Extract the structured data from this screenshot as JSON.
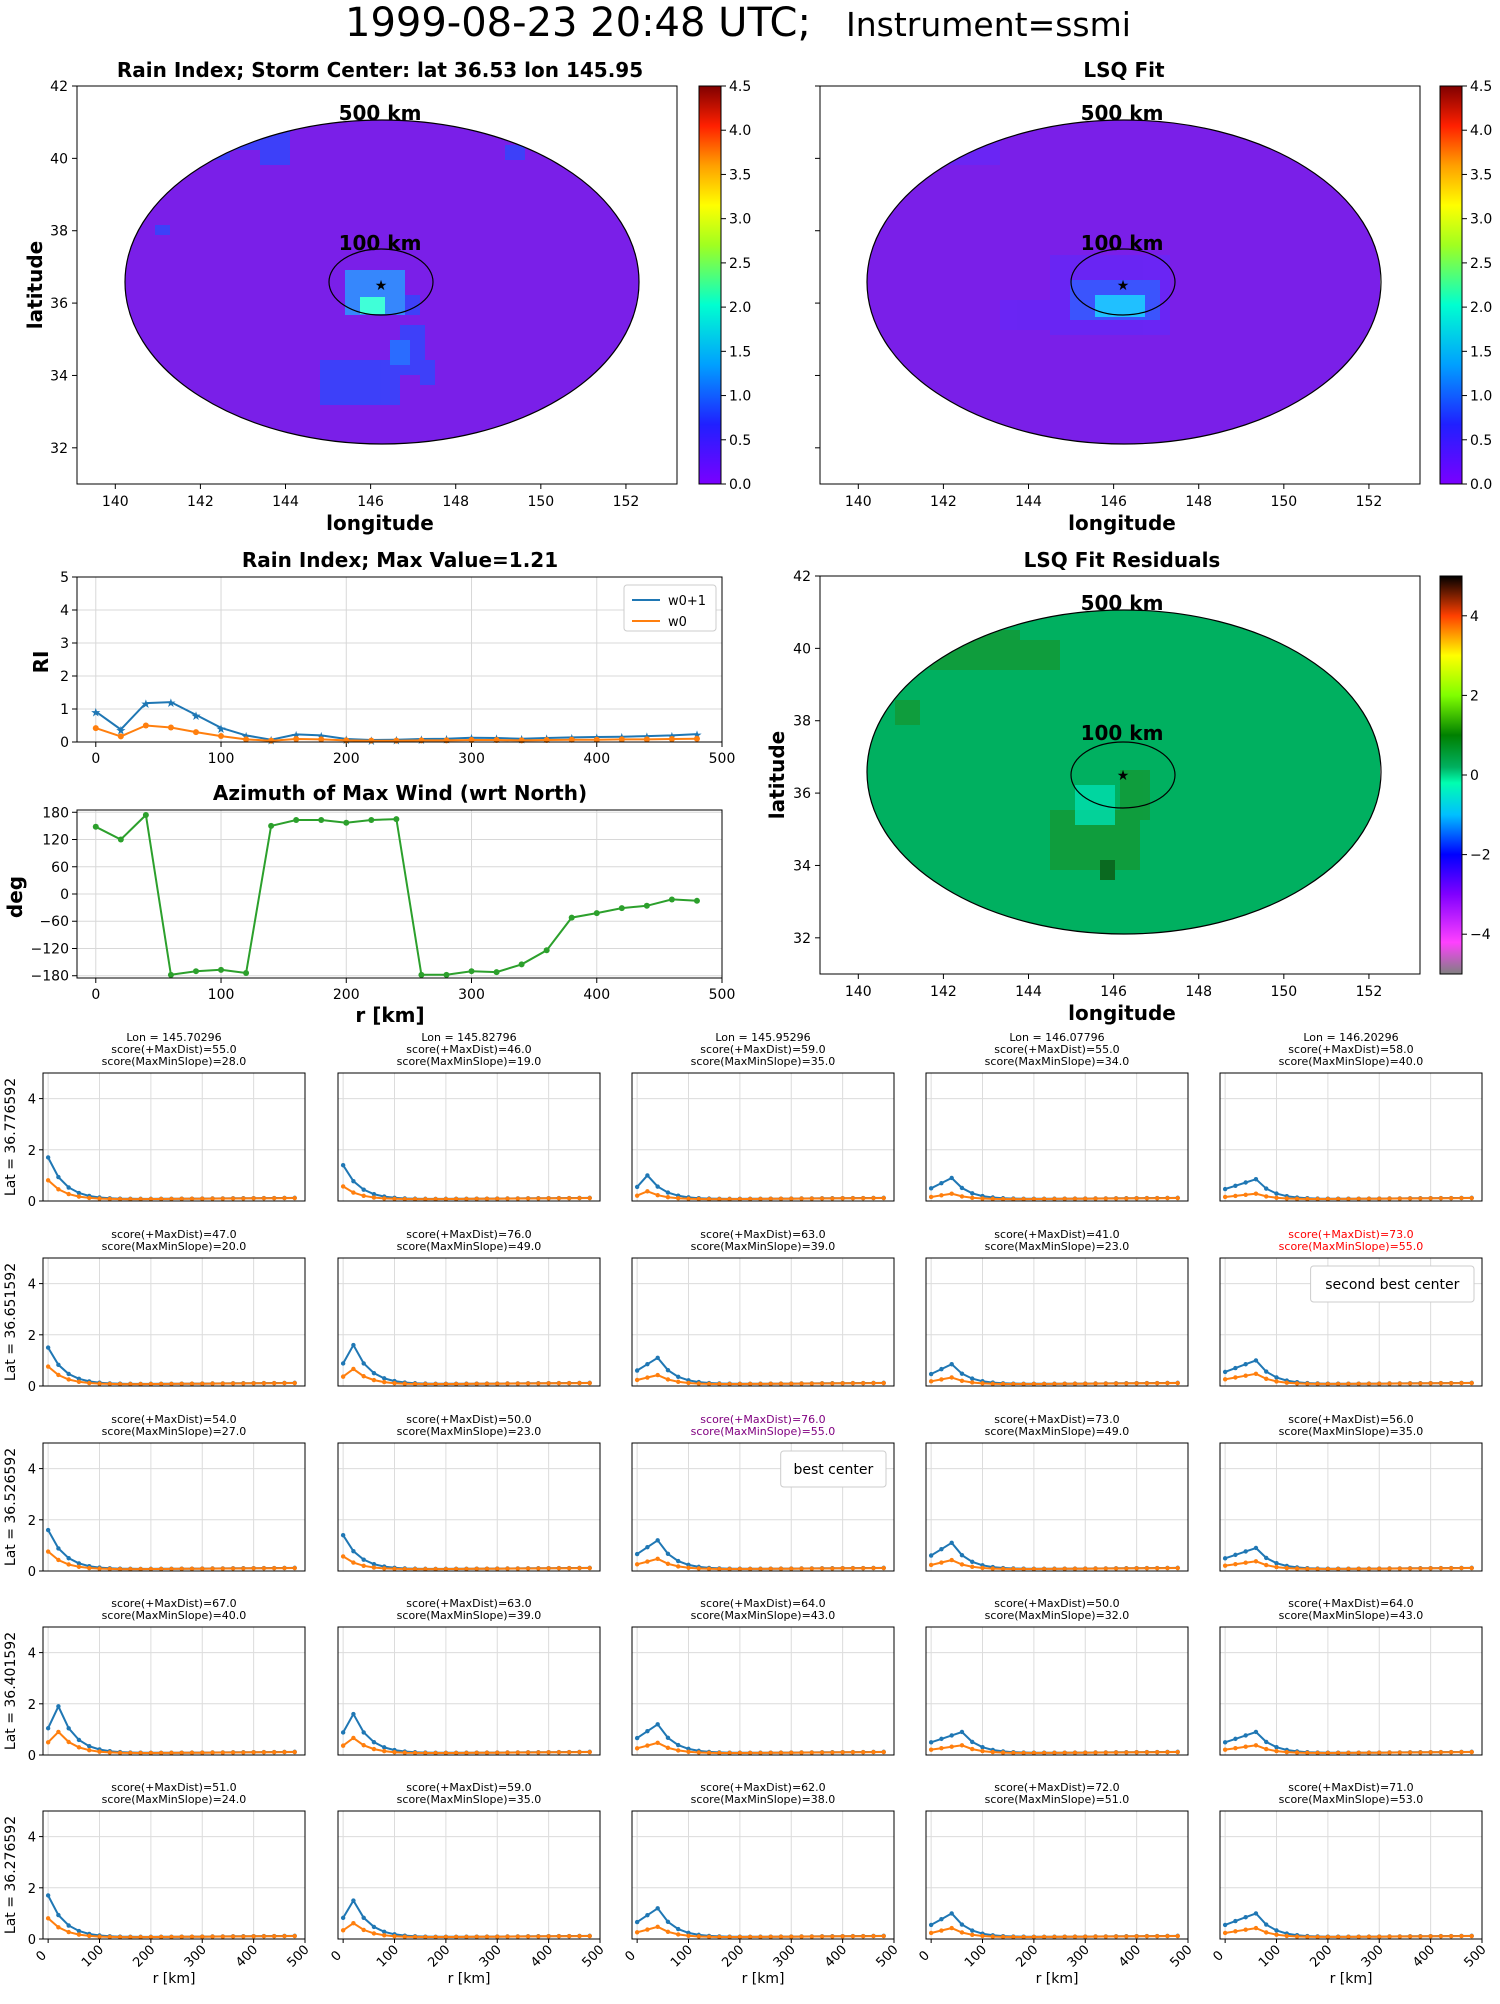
{
  "suptitle": {
    "date": "1999-08-23 20:48 UTC;",
    "instrument": "Instrument=ssmi"
  },
  "colors": {
    "w0p1": "#1f77b4",
    "w0": "#ff7f0e",
    "azimuth": "#2ca02c",
    "field": "#7a1fe8",
    "residual": "#00b060"
  },
  "maps": {
    "rain_index": {
      "title": "Rain Index; Storm Center: lat 36.53 lon 145.95",
      "xlabel": "longitude",
      "ylabel": "latitude"
    },
    "lsq_fit": {
      "title": "LSQ Fit",
      "xlabel": "longitude"
    },
    "residuals": {
      "title": "LSQ Fit Residuals",
      "xlabel": "longitude",
      "ylabel": "latitude"
    },
    "circle_500": "500 km",
    "circle_100": "100 km",
    "x_ticks": [
      "140",
      "142",
      "144",
      "146",
      "148",
      "150",
      "152"
    ],
    "y_ticks_top": [
      "32",
      "34",
      "36",
      "38",
      "40",
      "42"
    ],
    "y_ticks_res": [
      "32",
      "34",
      "36",
      "38",
      "40",
      "42"
    ],
    "cbar_ticks": [
      "0.0",
      "0.5",
      "1.0",
      "1.5",
      "2.0",
      "2.5",
      "3.0",
      "3.5",
      "4.0",
      "4.5"
    ],
    "cbar_ticks_res": [
      "−4",
      "−2",
      "0",
      "2",
      "4"
    ]
  },
  "chart_data": [
    {
      "type": "line",
      "title": "Rain Index; Max Value=1.21",
      "ylabel": "RI",
      "xlim": [
        -15,
        500
      ],
      "ylim": [
        0,
        5
      ],
      "x_ticks": [
        "0",
        "100",
        "200",
        "300",
        "400",
        "500"
      ],
      "y_ticks": [
        "0",
        "1",
        "2",
        "3",
        "4",
        "5"
      ],
      "x": [
        0,
        20,
        40,
        60,
        80,
        100,
        120,
        140,
        160,
        180,
        200,
        220,
        240,
        260,
        280,
        300,
        320,
        340,
        360,
        380,
        400,
        420,
        440,
        460,
        480
      ],
      "series": [
        {
          "name": "w0+1",
          "values": [
            0.92,
            0.38,
            1.18,
            1.21,
            0.82,
            0.43,
            0.2,
            0.07,
            0.23,
            0.2,
            0.09,
            0.06,
            0.07,
            0.09,
            0.1,
            0.13,
            0.12,
            0.1,
            0.12,
            0.14,
            0.15,
            0.16,
            0.18,
            0.2,
            0.24
          ]
        },
        {
          "name": "w0",
          "values": [
            0.42,
            0.17,
            0.5,
            0.44,
            0.3,
            0.18,
            0.08,
            0.04,
            0.09,
            0.08,
            0.05,
            0.04,
            0.04,
            0.05,
            0.05,
            0.06,
            0.06,
            0.05,
            0.06,
            0.07,
            0.07,
            0.08,
            0.08,
            0.09,
            0.1
          ]
        }
      ],
      "legend": "top-right"
    },
    {
      "type": "line",
      "title": "Azimuth of Max Wind (wrt North)",
      "xlabel": "r [km]",
      "ylabel": "deg",
      "xlim": [
        -15,
        500
      ],
      "ylim": [
        -185,
        185
      ],
      "x_ticks": [
        "0",
        "100",
        "200",
        "300",
        "400",
        "500"
      ],
      "y_ticks": [
        "−180",
        "−120",
        "−60",
        "0",
        "60",
        "120",
        "180"
      ],
      "x": [
        0,
        20,
        40,
        60,
        80,
        100,
        120,
        140,
        160,
        180,
        200,
        220,
        240,
        260,
        280,
        300,
        320,
        340,
        360,
        380,
        400,
        420,
        440,
        460,
        480
      ],
      "values": [
        148,
        120,
        174,
        -178,
        -170,
        -167,
        -174,
        150,
        163,
        163,
        157,
        163,
        165,
        -178,
        -178,
        -170,
        -172,
        -155,
        -124,
        -52,
        -42,
        -31,
        -26,
        -12,
        -15
      ]
    }
  ],
  "grid": {
    "x_ticks": [
      "0",
      "100",
      "200",
      "300",
      "400",
      "500"
    ],
    "y_ticks": [
      "0",
      "2",
      "4"
    ],
    "xlabel": "r [km]",
    "col_headers": [
      "Lon = 145.70296",
      "Lon = 145.82796",
      "Lon = 145.95296",
      "Lon = 146.07796",
      "Lon = 146.20296"
    ],
    "row_labels": [
      "Lat = 36.776592",
      "Lat = 36.651592",
      "Lat = 36.526592",
      "Lat = 36.401592",
      "Lat = 36.276592"
    ],
    "scores": [
      [
        [
          "score(+MaxDist)=55.0",
          "score(MaxMinSlope)=28.0"
        ],
        [
          "score(+MaxDist)=46.0",
          "score(MaxMinSlope)=19.0"
        ],
        [
          "score(+MaxDist)=59.0",
          "score(MaxMinSlope)=35.0"
        ],
        [
          "score(+MaxDist)=55.0",
          "score(MaxMinSlope)=34.0"
        ],
        [
          "score(+MaxDist)=58.0",
          "score(MaxMinSlope)=40.0"
        ]
      ],
      [
        [
          "score(+MaxDist)=47.0",
          "score(MaxMinSlope)=20.0"
        ],
        [
          "score(+MaxDist)=76.0",
          "score(MaxMinSlope)=49.0"
        ],
        [
          "score(+MaxDist)=63.0",
          "score(MaxMinSlope)=39.0"
        ],
        [
          "score(+MaxDist)=41.0",
          "score(MaxMinSlope)=23.0"
        ],
        [
          "score(+MaxDist)=73.0",
          "score(MaxMinSlope)=55.0"
        ]
      ],
      [
        [
          "score(+MaxDist)=54.0",
          "score(MaxMinSlope)=27.0"
        ],
        [
          "score(+MaxDist)=50.0",
          "score(MaxMinSlope)=23.0"
        ],
        [
          "score(+MaxDist)=76.0",
          "score(MaxMinSlope)=55.0"
        ],
        [
          "score(+MaxDist)=73.0",
          "score(MaxMinSlope)=49.0"
        ],
        [
          "score(+MaxDist)=56.0",
          "score(MaxMinSlope)=35.0"
        ]
      ],
      [
        [
          "score(+MaxDist)=67.0",
          "score(MaxMinSlope)=40.0"
        ],
        [
          "score(+MaxDist)=63.0",
          "score(MaxMinSlope)=39.0"
        ],
        [
          "score(+MaxDist)=64.0",
          "score(MaxMinSlope)=43.0"
        ],
        [
          "score(+MaxDist)=50.0",
          "score(MaxMinSlope)=32.0"
        ],
        [
          "score(+MaxDist)=64.0",
          "score(MaxMinSlope)=43.0"
        ]
      ],
      [
        [
          "score(+MaxDist)=51.0",
          "score(MaxMinSlope)=24.0"
        ],
        [
          "score(+MaxDist)=59.0",
          "score(MaxMinSlope)=35.0"
        ],
        [
          "score(+MaxDist)=62.0",
          "score(MaxMinSlope)=38.0"
        ],
        [
          "score(+MaxDist)=72.0",
          "score(MaxMinSlope)=51.0"
        ],
        [
          "score(+MaxDist)=71.0",
          "score(MaxMinSlope)=53.0"
        ]
      ]
    ],
    "highlights": [
      {
        "row": 1,
        "col": 4,
        "color": "#ff0000",
        "label": "second best center"
      },
      {
        "row": 2,
        "col": 2,
        "color": "#800080",
        "label": "best center"
      }
    ],
    "peaks": [
      [
        [
          1.7,
          0.85
        ],
        [
          1.4,
          0.6
        ],
        [
          1.0,
          0.4
        ],
        [
          0.9,
          0.3
        ],
        [
          0.85,
          0.3
        ]
      ],
      [
        [
          1.5,
          0.8
        ],
        [
          1.6,
          0.7
        ],
        [
          1.1,
          0.45
        ],
        [
          0.85,
          0.35
        ],
        [
          1.0,
          0.5
        ]
      ],
      [
        [
          1.6,
          0.8
        ],
        [
          1.4,
          0.6
        ],
        [
          1.2,
          0.5
        ],
        [
          1.1,
          0.45
        ],
        [
          0.9,
          0.4
        ]
      ],
      [
        [
          1.9,
          0.95
        ],
        [
          1.6,
          0.7
        ],
        [
          1.2,
          0.5
        ],
        [
          0.9,
          0.4
        ],
        [
          0.9,
          0.4
        ]
      ],
      [
        [
          1.7,
          0.85
        ],
        [
          1.5,
          0.65
        ],
        [
          1.2,
          0.5
        ],
        [
          1.0,
          0.45
        ],
        [
          1.0,
          0.45
        ]
      ]
    ],
    "peak_index": [
      [
        0,
        0,
        1,
        2,
        3
      ],
      [
        0,
        1,
        2,
        2,
        3
      ],
      [
        0,
        0,
        2,
        2,
        3
      ],
      [
        1,
        1,
        2,
        3,
        3
      ],
      [
        0,
        1,
        2,
        2,
        3
      ]
    ]
  }
}
